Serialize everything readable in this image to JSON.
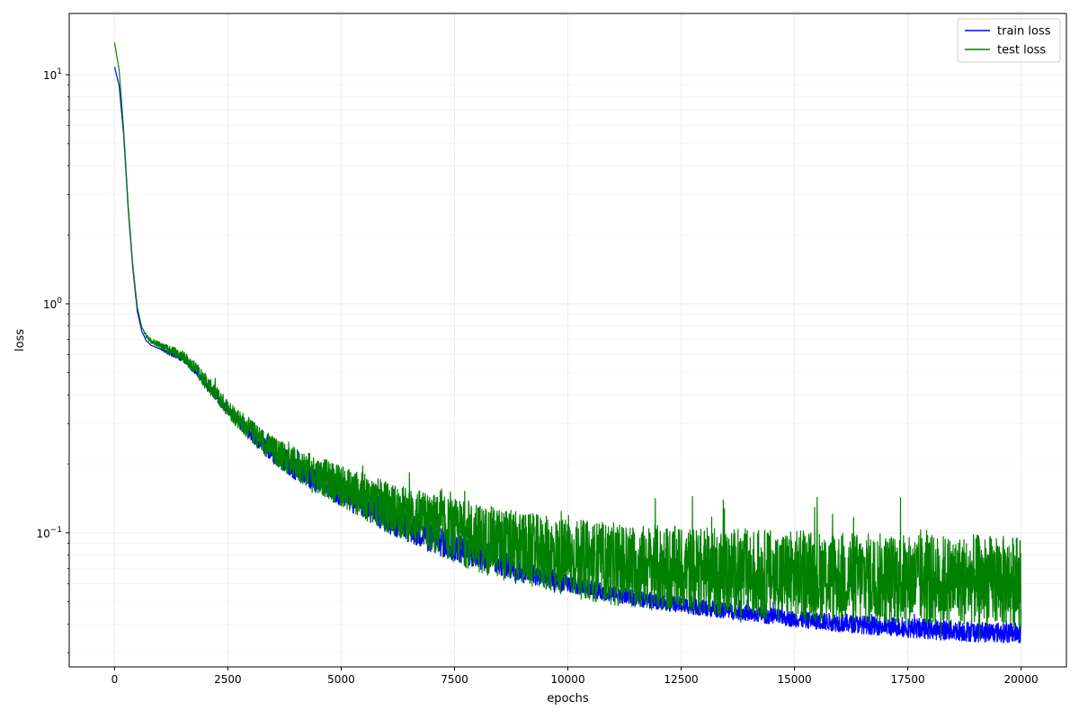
{
  "chart_data": {
    "type": "line",
    "xlabel": "epochs",
    "ylabel": "loss",
    "xlim": [
      -1000,
      21000
    ],
    "ylim": [
      0.026,
      18.5
    ],
    "yscale": "log",
    "grid": true,
    "legend_position": "top-right",
    "x_ticks": [
      0,
      2500,
      5000,
      7500,
      10000,
      12500,
      15000,
      17500,
      20000
    ],
    "x_tick_labels": [
      "0",
      "2500",
      "5000",
      "7500",
      "10000",
      "12500",
      "15000",
      "17500",
      "20000"
    ],
    "y_major_ticks": [
      0.1,
      1,
      10
    ],
    "y_tick_labels": [
      {
        "base": "10",
        "exp": "−1"
      },
      {
        "base": "10",
        "exp": "0"
      },
      {
        "base": "10",
        "exp": "1"
      }
    ],
    "series": [
      {
        "name": "train loss",
        "color": "#0000ff",
        "x": [
          0,
          100,
          200,
          300,
          400,
          500,
          600,
          700,
          800,
          1000,
          1200,
          1500,
          1800,
          2000,
          2500,
          3000,
          3500,
          4000,
          5000,
          6000,
          7000,
          8000,
          9000,
          10000,
          11000,
          12000,
          13000,
          14000,
          15000,
          16000,
          17000,
          18000,
          19000,
          20000
        ],
        "y": [
          10.8,
          9.0,
          5.5,
          2.6,
          1.45,
          0.93,
          0.76,
          0.69,
          0.66,
          0.635,
          0.61,
          0.57,
          0.5,
          0.45,
          0.34,
          0.27,
          0.22,
          0.19,
          0.15,
          0.118,
          0.095,
          0.08,
          0.068,
          0.06,
          0.054,
          0.05,
          0.047,
          0.0445,
          0.042,
          0.0405,
          0.039,
          0.038,
          0.037,
          0.0365
        ],
        "noise": [
          0,
          0,
          0,
          0,
          0,
          0,
          0,
          0,
          0,
          0,
          0.01,
          0.01,
          0.01,
          0.015,
          0.02,
          0.03,
          0.04,
          0.05,
          0.06,
          0.07,
          0.07,
          0.06,
          0.05,
          0.04,
          0.035,
          0.035,
          0.035,
          0.035,
          0.035,
          0.04,
          0.04,
          0.045,
          0.045,
          0.045
        ]
      },
      {
        "name": "test loss",
        "color": "#008000",
        "x": [
          0,
          100,
          200,
          300,
          400,
          500,
          600,
          700,
          800,
          1000,
          1200,
          1500,
          1800,
          2000,
          2500,
          3000,
          3500,
          4000,
          5000,
          6000,
          7000,
          8000,
          9000,
          10000,
          11000,
          12000,
          13000,
          14000,
          15000,
          16000,
          17000,
          18000,
          19000,
          20000
        ],
        "y": [
          13.8,
          10.5,
          5.8,
          2.7,
          1.5,
          0.97,
          0.79,
          0.72,
          0.69,
          0.66,
          0.63,
          0.59,
          0.52,
          0.46,
          0.35,
          0.28,
          0.23,
          0.2,
          0.16,
          0.13,
          0.11,
          0.095,
          0.085,
          0.078,
          0.073,
          0.07,
          0.068,
          0.066,
          0.065,
          0.064,
          0.063,
          0.062,
          0.062,
          0.061
        ],
        "noise": [
          0,
          0,
          0,
          0,
          0,
          0,
          0,
          0.01,
          0.01,
          0.015,
          0.02,
          0.025,
          0.03,
          0.035,
          0.04,
          0.05,
          0.06,
          0.07,
          0.09,
          0.11,
          0.13,
          0.15,
          0.16,
          0.17,
          0.18,
          0.19,
          0.19,
          0.2,
          0.2,
          0.2,
          0.2,
          0.2,
          0.2,
          0.2
        ]
      }
    ]
  }
}
